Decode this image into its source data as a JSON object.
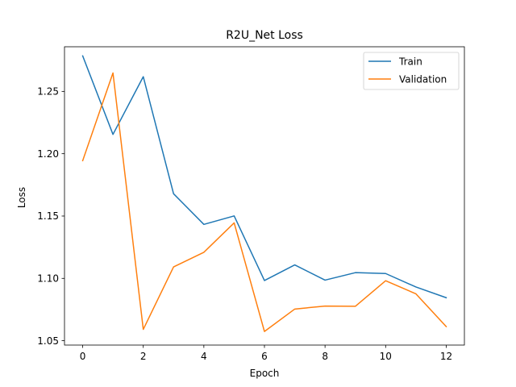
{
  "chart_data": {
    "type": "line",
    "title": "R2U_Net Loss",
    "xlabel": "Epoch",
    "ylabel": "Loss",
    "x": [
      0,
      1,
      2,
      3,
      4,
      5,
      6,
      7,
      8,
      9,
      10,
      11,
      12
    ],
    "xlim": [
      -0.6,
      12.6
    ],
    "ylim": [
      1.0465,
      1.2858
    ],
    "xticks": [
      0,
      2,
      4,
      6,
      8,
      10,
      12
    ],
    "xtick_labels": [
      "0",
      "2",
      "4",
      "6",
      "8",
      "10",
      "12"
    ],
    "yticks": [
      1.05,
      1.1,
      1.15,
      1.2,
      1.25
    ],
    "ytick_labels": [
      "1.05",
      "1.10",
      "1.15",
      "1.20",
      "1.25"
    ],
    "grid": false,
    "legend_position": "top-right",
    "series": [
      {
        "name": "Train",
        "color": "#1f77b4",
        "values": [
          1.2785,
          1.2155,
          1.2618,
          1.1679,
          1.1433,
          1.1501,
          1.0983,
          1.1108,
          1.0986,
          1.1046,
          1.1039,
          1.0931,
          1.0845
        ]
      },
      {
        "name": "Validation",
        "color": "#ff7f0e",
        "values": [
          1.1944,
          1.2648,
          1.0591,
          1.1092,
          1.1209,
          1.1445,
          1.0574,
          1.0754,
          1.0778,
          1.0776,
          1.0981,
          1.0876,
          1.0613
        ]
      }
    ]
  }
}
